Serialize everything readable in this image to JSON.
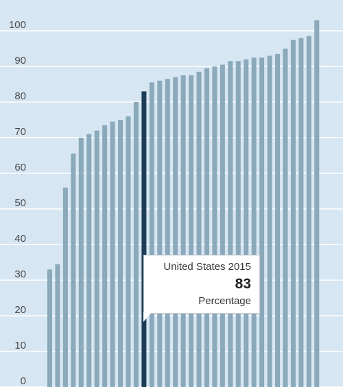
{
  "chart_data": {
    "type": "bar",
    "ylim": [
      0,
      100
    ],
    "y_ticks": [
      0,
      10,
      20,
      30,
      40,
      50,
      60,
      70,
      80,
      90,
      100
    ],
    "grid": true,
    "values": [
      33,
      34.5,
      56,
      65.5,
      70,
      71,
      72,
      73.5,
      74.5,
      75,
      76,
      80,
      83,
      85.5,
      86,
      86.5,
      87,
      87.5,
      87.5,
      88.5,
      89.5,
      90,
      90.5,
      91.5,
      91.5,
      92,
      92.5,
      92.5,
      93,
      93.5,
      95,
      97.5,
      98,
      98.5,
      103
    ],
    "highlight_index": 12,
    "colors": {
      "bar": "#8aa9ba",
      "highlight": "#1d3d55",
      "background": "#d6e6f2",
      "grid": "#ffffff"
    }
  },
  "tooltip": {
    "title": "United States 2015",
    "value": "83",
    "unit": "Percentage"
  }
}
